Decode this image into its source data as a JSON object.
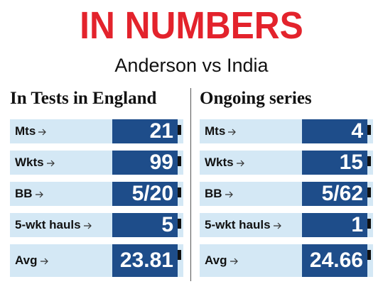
{
  "header": {
    "title": "IN NUMBERS",
    "subtitle": "Anderson vs India"
  },
  "panels": [
    {
      "heading": "In Tests in England",
      "rows": [
        {
          "label": "Mts",
          "value": 21
        },
        {
          "label": "Wkts",
          "value": 99
        },
        {
          "label": "BB",
          "value": "5/20"
        },
        {
          "label": "5-wkt hauls",
          "value": 5
        },
        {
          "label": "Avg",
          "value": 23.81
        }
      ]
    },
    {
      "heading": "Ongoing series",
      "rows": [
        {
          "label": "Mts",
          "value": 4
        },
        {
          "label": "Wkts",
          "value": 15
        },
        {
          "label": "BB",
          "value": "5/62"
        },
        {
          "label": "5-wkt hauls",
          "value": 1
        },
        {
          "label": "Avg",
          "value": 24.66
        }
      ]
    }
  ]
}
